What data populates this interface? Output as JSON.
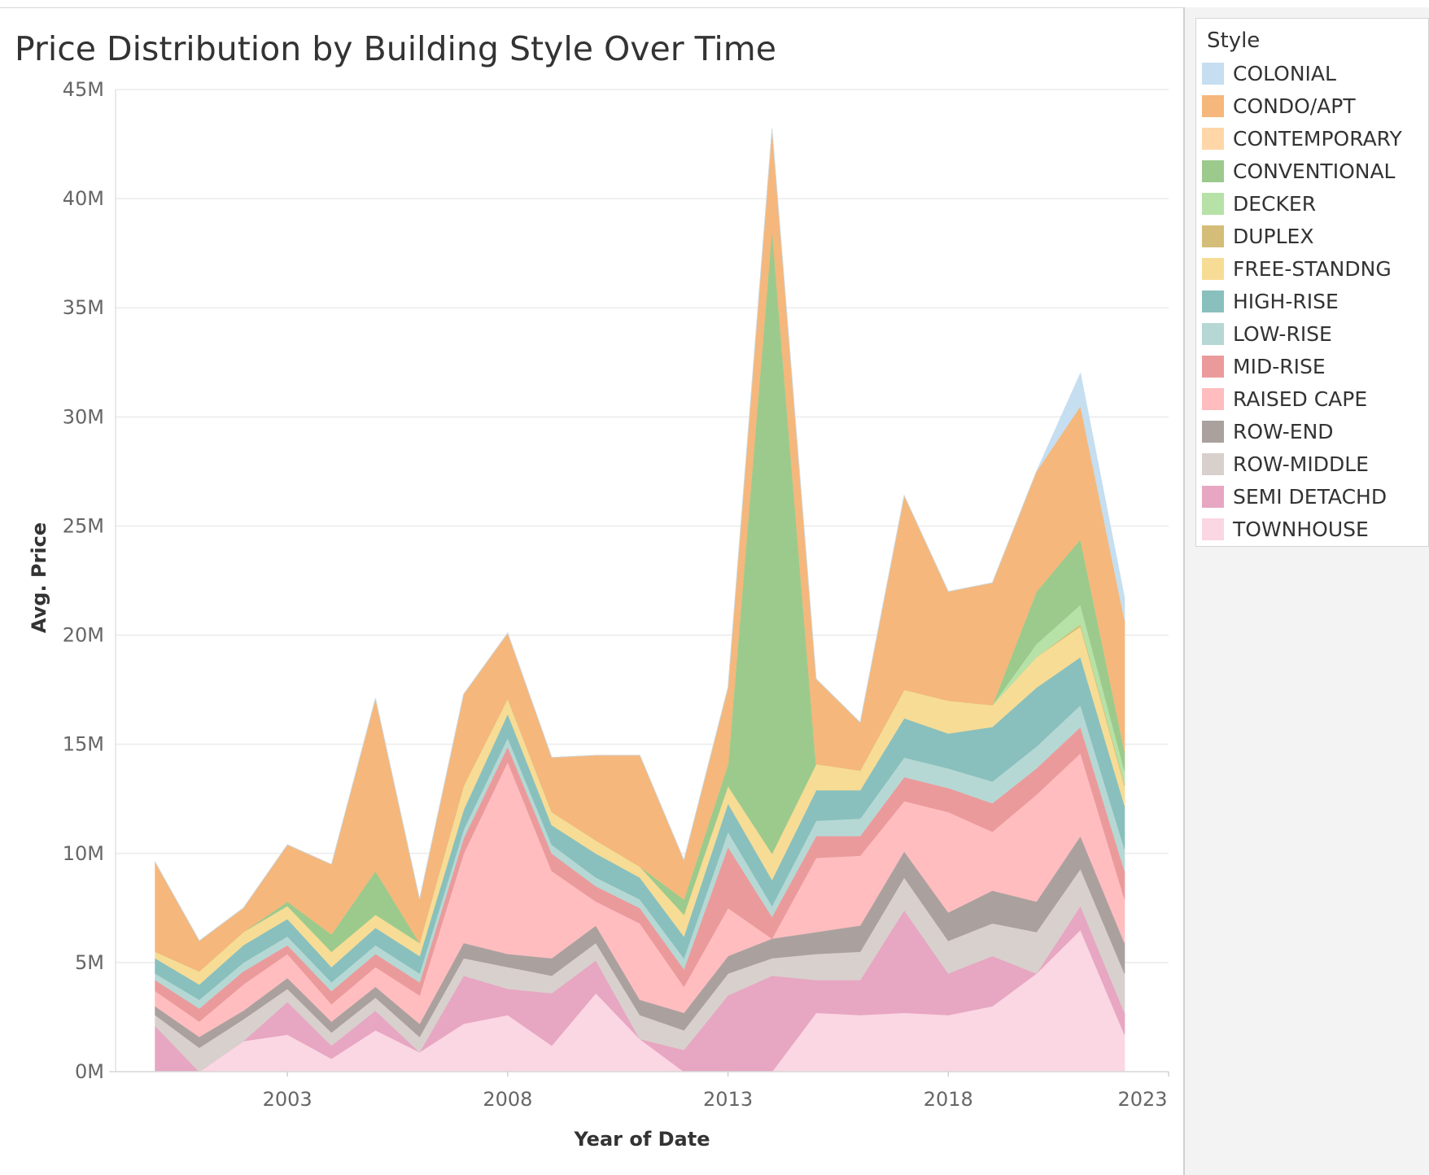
{
  "chart_data": {
    "type": "area",
    "stacked": true,
    "title": "Price Distribution by Building Style Over Time",
    "xlabel": "Year of Date",
    "ylabel": "Avg. Price",
    "x_ticks": [
      "2003",
      "2008",
      "2013",
      "2018",
      "2023"
    ],
    "y_ticks": [
      "0M",
      "5M",
      "10M",
      "15M",
      "20M",
      "25M",
      "30M",
      "35M",
      "40M",
      "45M"
    ],
    "ylim": [
      0,
      45000000
    ],
    "xlim": [
      1999.1,
      2023.0
    ],
    "grid": true,
    "legend_title": "Style",
    "legend_position": "right",
    "x": [
      2000,
      2001,
      2002,
      2003,
      2004,
      2005,
      2006,
      2007,
      2008,
      2009,
      2010,
      2011,
      2012,
      2013,
      2014,
      2015,
      2016,
      2017,
      2018,
      2019,
      2020,
      2021,
      2022
    ],
    "series": [
      {
        "name": "TOWNHOUSE",
        "color": "#fbd6e3",
        "values": [
          0,
          0,
          1400000,
          1700000,
          600000,
          1900000,
          900000,
          2200000,
          2600000,
          1200000,
          3600000,
          1500000,
          0,
          0,
          0,
          2700000,
          2600000,
          2700000,
          2600000,
          3000000,
          4500000,
          6500000,
          1700000
        ]
      },
      {
        "name": "SEMI DETACHD",
        "color": "#e7a6c1",
        "values": [
          2100000,
          0,
          0,
          1500000,
          600000,
          900000,
          0,
          2200000,
          1200000,
          2400000,
          1500000,
          0,
          1000000,
          3500000,
          4400000,
          1500000,
          1600000,
          4700000,
          1900000,
          2300000,
          0,
          1100000,
          1000000
        ]
      },
      {
        "name": "ROW-MIDDLE",
        "color": "#d8d0cd",
        "values": [
          500000,
          1100000,
          1000000,
          600000,
          600000,
          600000,
          700000,
          800000,
          1000000,
          800000,
          800000,
          1100000,
          900000,
          1000000,
          800000,
          1200000,
          1300000,
          1500000,
          1500000,
          1500000,
          1900000,
          1700000,
          1800000
        ]
      },
      {
        "name": "ROW-END",
        "color": "#aaa19f",
        "values": [
          400000,
          500000,
          400000,
          500000,
          500000,
          500000,
          600000,
          700000,
          600000,
          800000,
          800000,
          700000,
          800000,
          800000,
          900000,
          1000000,
          1200000,
          1200000,
          1300000,
          1500000,
          1400000,
          1500000,
          1400000
        ]
      },
      {
        "name": "RAISED CAPE",
        "color": "#ffbdbf",
        "values": [
          700000,
          700000,
          1200000,
          1100000,
          800000,
          900000,
          1300000,
          4100000,
          8800000,
          4000000,
          1100000,
          3500000,
          1200000,
          2200000,
          0,
          3400000,
          3200000,
          2300000,
          4600000,
          2700000,
          4900000,
          3800000,
          2000000
        ]
      },
      {
        "name": "MID-RISE",
        "color": "#eb9a9b",
        "values": [
          500000,
          600000,
          600000,
          400000,
          600000,
          600000,
          600000,
          700000,
          700000,
          800000,
          700000,
          700000,
          800000,
          2800000,
          1000000,
          1000000,
          900000,
          1100000,
          1100000,
          1300000,
          1200000,
          1200000,
          1300000
        ]
      },
      {
        "name": "LOW-RISE",
        "color": "#b6d8d4",
        "values": [
          300000,
          400000,
          400000,
          400000,
          400000,
          400000,
          400000,
          400000,
          400000,
          400000,
          400000,
          400000,
          500000,
          700000,
          500000,
          700000,
          800000,
          900000,
          900000,
          1000000,
          1000000,
          1000000,
          1000000
        ]
      },
      {
        "name": "HIGH-RISE",
        "color": "#89c0bd",
        "values": [
          700000,
          700000,
          800000,
          800000,
          700000,
          800000,
          800000,
          900000,
          1100000,
          900000,
          1100000,
          1000000,
          1000000,
          1300000,
          1200000,
          1400000,
          1300000,
          1800000,
          1600000,
          2500000,
          2700000,
          2200000,
          2000000
        ]
      },
      {
        "name": "FREE-STANDNG",
        "color": "#f7dc96",
        "values": [
          300000,
          600000,
          600000,
          600000,
          700000,
          600000,
          600000,
          1100000,
          700000,
          600000,
          600000,
          500000,
          1000000,
          800000,
          1200000,
          1200000,
          900000,
          1300000,
          1500000,
          1000000,
          1400000,
          1400000,
          900000
        ]
      },
      {
        "name": "DUPLEX",
        "color": "#d4bd78",
        "values": [
          0,
          0,
          0,
          0,
          0,
          0,
          0,
          0,
          0,
          0,
          0,
          0,
          0,
          0,
          0,
          0,
          0,
          0,
          0,
          0,
          0,
          100000,
          100000
        ]
      },
      {
        "name": "DECKER",
        "color": "#b6e2a7",
        "values": [
          0,
          0,
          0,
          0,
          0,
          0,
          0,
          0,
          0,
          0,
          0,
          0,
          0,
          0,
          0,
          0,
          0,
          0,
          0,
          0,
          600000,
          900000,
          600000
        ]
      },
      {
        "name": "CONVENTIONAL",
        "color": "#9cca8d",
        "values": [
          0,
          0,
          0,
          200000,
          800000,
          2000000,
          0,
          0,
          0,
          0,
          0,
          0,
          700000,
          1000000,
          28700000,
          0,
          0,
          0,
          0,
          0,
          2400000,
          3000000,
          900000
        ]
      },
      {
        "name": "CONTEMPORARY",
        "color": "#ffd6a8",
        "values": [
          0,
          0,
          0,
          0,
          0,
          0,
          0,
          0,
          0,
          0,
          0,
          0,
          0,
          0,
          0,
          0,
          0,
          0,
          0,
          0,
          0,
          0,
          0
        ]
      },
      {
        "name": "CONDO/APT",
        "color": "#f5b77b",
        "values": [
          4100000,
          1400000,
          1100000,
          2600000,
          3200000,
          7900000,
          2000000,
          4200000,
          3000000,
          2500000,
          3900000,
          5100000,
          1800000,
          3500000,
          4500000,
          3900000,
          2200000,
          8900000,
          5000000,
          5600000,
          5500000,
          6100000,
          6000000
        ]
      },
      {
        "name": "COLONIAL",
        "color": "#c5def0",
        "values": [
          0,
          0,
          0,
          0,
          0,
          0,
          0,
          0,
          0,
          0,
          0,
          0,
          0,
          0,
          0,
          0,
          0,
          0,
          0,
          0,
          0,
          1500000,
          1000000
        ]
      }
    ]
  }
}
